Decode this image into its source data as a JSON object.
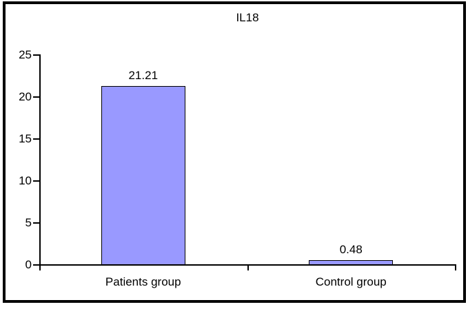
{
  "chart_data": {
    "type": "bar",
    "title": "IL18",
    "categories": [
      "Patients group",
      "Control group"
    ],
    "values": [
      21.21,
      0.48
    ],
    "data_labels": [
      "21.21",
      "0.48"
    ],
    "xlabel": "",
    "ylabel": "",
    "ylim": [
      0,
      25
    ],
    "yticks": [
      0,
      5,
      10,
      15,
      20,
      25
    ],
    "grid": false,
    "legend": "none",
    "bar_color": "#9999FF",
    "bar_border_color": "#000000",
    "axis_color": "#000000",
    "text_color": "#000000",
    "background_color": "#FFFFFF",
    "frame_color": "#000000"
  }
}
